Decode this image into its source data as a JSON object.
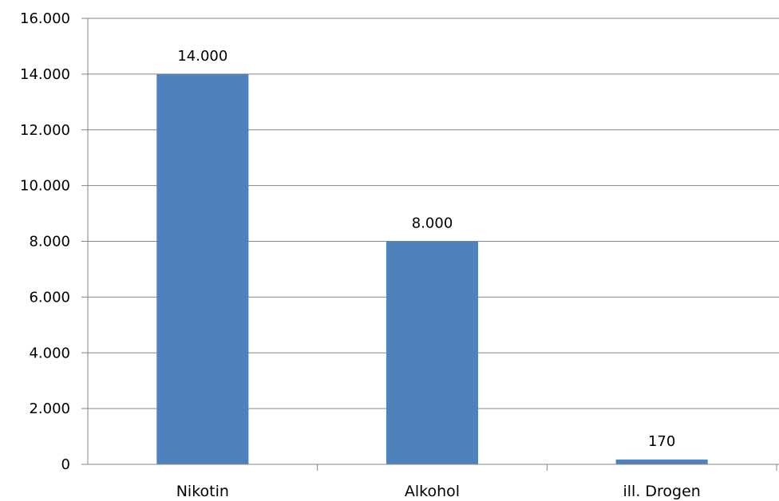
{
  "chart_data": {
    "type": "bar",
    "categories": [
      "Nikotin",
      "Alkohol",
      "ill. Drogen"
    ],
    "values": [
      14000,
      8000,
      170
    ],
    "value_labels": [
      "14.000",
      "8.000",
      "170"
    ],
    "ylim": [
      0,
      16000
    ],
    "yticks": [
      0,
      2000,
      4000,
      6000,
      8000,
      10000,
      12000,
      14000,
      16000
    ],
    "ytick_labels": [
      "0",
      "2.000",
      "4.000",
      "6.000",
      "8.000",
      "10.000",
      "12.000",
      "14.000",
      "16.000"
    ],
    "grid": true,
    "legend": "none",
    "bar_color": "#4f81bd",
    "grid_color": "#868686"
  }
}
